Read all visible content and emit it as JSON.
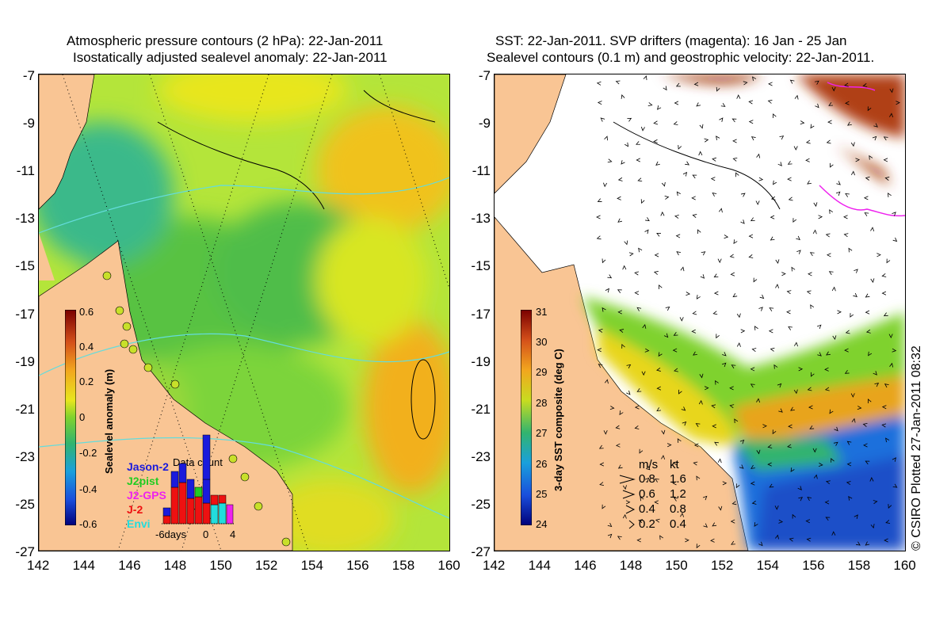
{
  "left_panel": {
    "title_line1": "Atmospheric pressure contours (2 hPa): 22-Jan-2011",
    "title_line2": "Isostatically adjusted sealevel anomaly: 22-Jan-2011",
    "colorbar": {
      "label": "Sealevel anomaly (m)",
      "ticks": [
        "0.6",
        "0.4",
        "0.2",
        "0",
        "-0.2",
        "-0.4",
        "-0.6"
      ]
    },
    "data_count": {
      "title": "Data count",
      "sources": [
        "Jason-2",
        "J2pist",
        "J2-GPS",
        "J-2",
        "Envi"
      ],
      "source_colors": [
        "#1a1adc",
        "#22cc22",
        "#ee22ee",
        "#ee1111",
        "#22dddd"
      ],
      "xticks": [
        "-6days",
        "0",
        "4"
      ]
    }
  },
  "right_panel": {
    "title_line1": "SST: 22-Jan-2011. SVP drifters (magenta): 16 Jan - 25 Jan",
    "title_line2": "Sealevel contours (0.1 m) and geostrophic velocity: 22-Jan-2011.",
    "colorbar": {
      "label": "3-day SST composite (deg C)",
      "ticks": [
        "31",
        "30",
        "29",
        "28",
        "27",
        "26",
        "25",
        "24"
      ]
    },
    "velocity_legend": {
      "header_ms": "m/s",
      "header_kt": "kt",
      "rows": [
        {
          "ms": "0.8",
          "kt": "1.6"
        },
        {
          "ms": "0.6",
          "kt": "1.2"
        },
        {
          "ms": "0.4",
          "kt": "0.8"
        },
        {
          "ms": "0.2",
          "kt": "0.4"
        }
      ]
    }
  },
  "axes": {
    "x_ticks": [
      "142",
      "144",
      "146",
      "148",
      "150",
      "152",
      "154",
      "156",
      "158",
      "160"
    ],
    "y_ticks": [
      "-7",
      "-9",
      "-11",
      "-13",
      "-15",
      "-17",
      "-19",
      "-21",
      "-23",
      "-25",
      "-27"
    ]
  },
  "credit": "© CSIRO Plotted 27-Jan-2011 08:32",
  "colors": {
    "land": "#f9c594",
    "ocean_mid": "#7fd22e",
    "contour": "#64dcdc"
  }
}
